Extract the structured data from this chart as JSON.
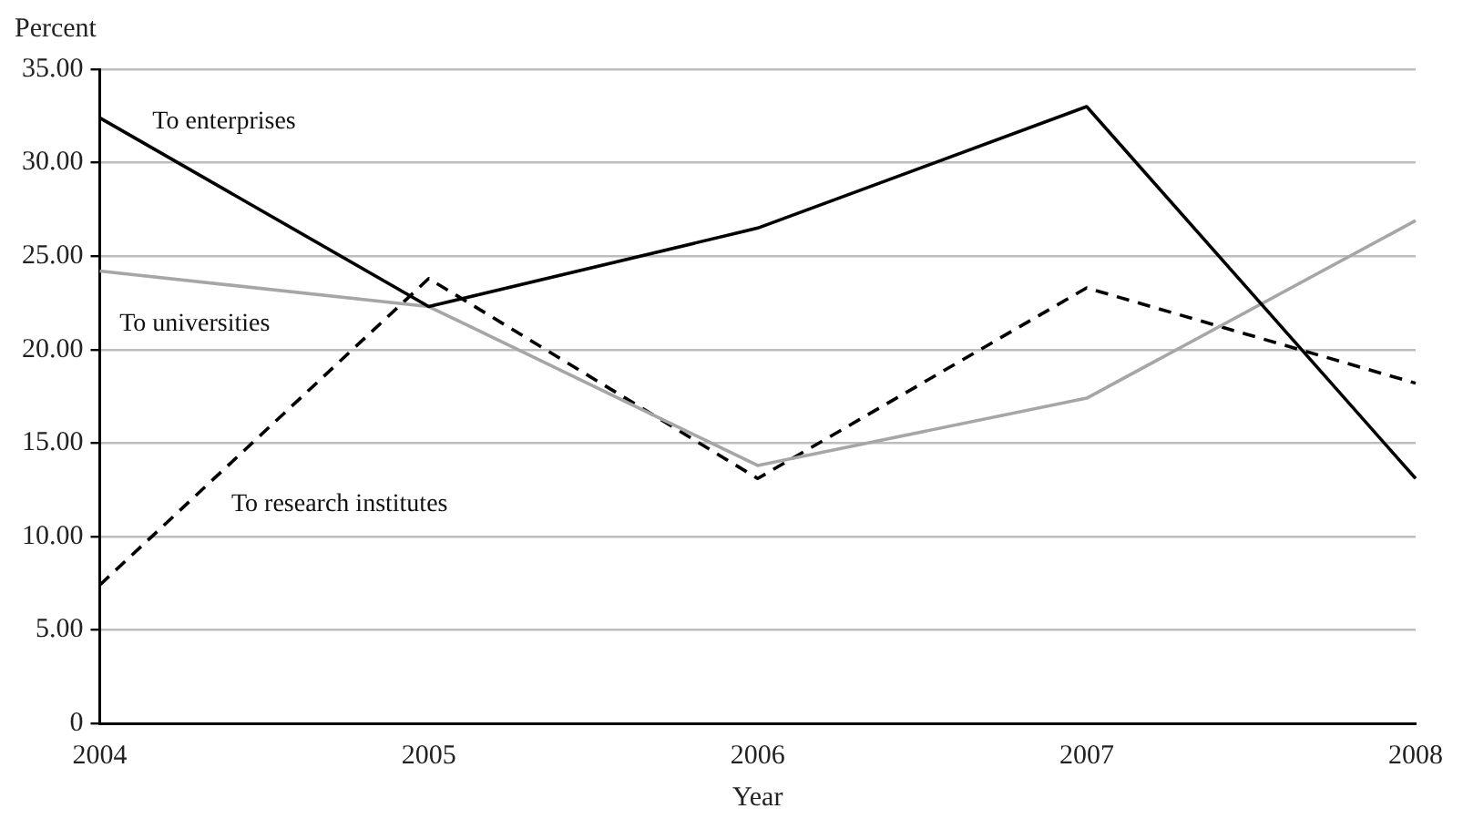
{
  "chart_data": {
    "type": "line",
    "xlabel": "Year",
    "ylabel": "Percent",
    "categories": [
      "2004",
      "2005",
      "2006",
      "2007",
      "2008"
    ],
    "series": [
      {
        "name": "To enterprises",
        "color": "#000000",
        "line_style": "solid",
        "values": [
          32.4,
          22.3,
          26.5,
          33.0,
          13.1
        ]
      },
      {
        "name": "To universities",
        "color": "#a6a6a6",
        "line_style": "solid",
        "values": [
          24.2,
          22.3,
          13.8,
          17.4,
          26.9
        ]
      },
      {
        "name": "To research institutes",
        "color": "#000000",
        "line_style": "dashed",
        "values": [
          7.4,
          23.8,
          13.1,
          23.3,
          18.2
        ]
      }
    ],
    "ylim": [
      0,
      35
    ],
    "yticks": [
      0,
      {
        "value": 5,
        "label": "5.00"
      },
      {
        "value": 10,
        "label": "10.00"
      },
      {
        "value": 15,
        "label": "15.00"
      },
      {
        "value": 20,
        "label": "20.00"
      },
      {
        "value": 25,
        "label": "25.00"
      },
      {
        "value": 30,
        "label": "30.00"
      },
      {
        "value": 35,
        "label": "35.00"
      }
    ],
    "grid": "y",
    "legend": false,
    "marker": "none"
  }
}
